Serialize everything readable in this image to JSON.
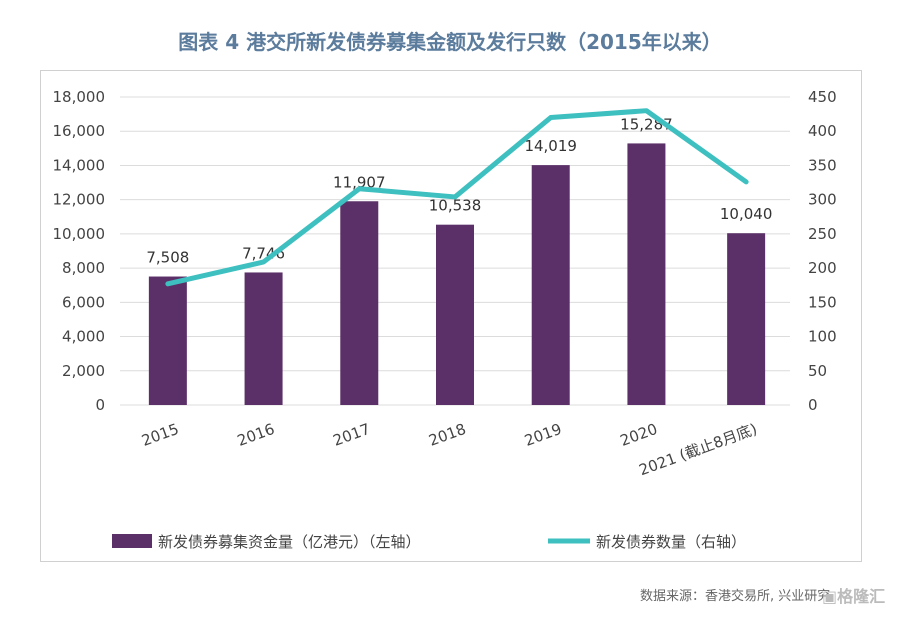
{
  "title": "图表 4  港交所新发债券募集金额及发行只数（2015年以来）",
  "source": "数据来源：香港交易所, 兴业研究",
  "watermark": "格隆汇",
  "colors": {
    "bar": "#5b3068",
    "line": "#3ebfc0",
    "title": "#5b7c9c"
  },
  "chart_data": {
    "type": "bar+line",
    "categories": [
      "2015",
      "2016",
      "2017",
      "2018",
      "2019",
      "2020",
      "2021 (截止8月底)"
    ],
    "series": [
      {
        "name": "新发债券募集资金量（亿港元）（左轴）",
        "type": "bar",
        "axis": "left",
        "values": [
          7508,
          7746,
          11907,
          10538,
          14019,
          15287,
          10040
        ],
        "labels": [
          "7,508",
          "7,746",
          "11,907",
          "10,538",
          "14,019",
          "15,287",
          "10,040"
        ]
      },
      {
        "name": "新发债券数量（右轴）",
        "type": "line",
        "axis": "right",
        "values": [
          177,
          209,
          316,
          304,
          420,
          430,
          326
        ]
      }
    ],
    "left_axis": {
      "ylim": [
        0,
        18000
      ],
      "ticks": [
        "0",
        "2,000",
        "4,000",
        "6,000",
        "8,000",
        "10,000",
        "12,000",
        "14,000",
        "16,000",
        "18,000"
      ]
    },
    "right_axis": {
      "ylim": [
        0,
        450
      ],
      "ticks": [
        "0",
        "50",
        "100",
        "150",
        "200",
        "250",
        "300",
        "350",
        "400",
        "450"
      ]
    },
    "grid": true,
    "legend": "bottom"
  }
}
